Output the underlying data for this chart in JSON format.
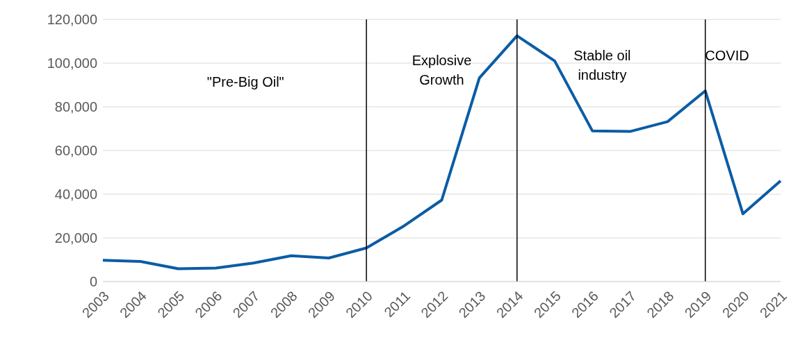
{
  "chart_data": {
    "type": "line",
    "categories": [
      "2003",
      "2004",
      "2005",
      "2006",
      "2007",
      "2008",
      "2009",
      "2010",
      "2011",
      "2012",
      "2013",
      "2014",
      "2015",
      "2016",
      "2017",
      "2018",
      "2019",
      "2020",
      "2021"
    ],
    "series": [
      {
        "color": "#0b5ca5",
        "values": [
          9800,
          9200,
          5900,
          6200,
          8500,
          11800,
          10800,
          15400,
          25500,
          37300,
          93200,
          112500,
          101000,
          69000,
          68700,
          73200,
          87300,
          31000,
          46100
        ]
      }
    ],
    "ylim": [
      0,
      120000
    ],
    "yticks": [
      0,
      {
        "value": 20000,
        "label": "20,000"
      },
      {
        "value": 40000,
        "label": "40,000"
      },
      {
        "value": 60000,
        "label": "60,000"
      },
      {
        "value": 80000,
        "label": "80,000"
      },
      {
        "value": 100000,
        "label": "100,000"
      },
      {
        "value": 120000,
        "label": "120,000"
      }
    ],
    "grid": "y",
    "marker": "none",
    "line_style": "solid",
    "ref_lines": [
      {
        "axis": "x",
        "value": "2010",
        "color": "#000000"
      },
      {
        "axis": "x",
        "value": "2014",
        "color": "#000000"
      },
      {
        "axis": "x",
        "value": "2019",
        "color": "#000000"
      }
    ],
    "annotations": [
      "\"Pre-Big Oil\"",
      "Explosive Growth",
      "Stable oil industry",
      "COVID"
    ]
  }
}
